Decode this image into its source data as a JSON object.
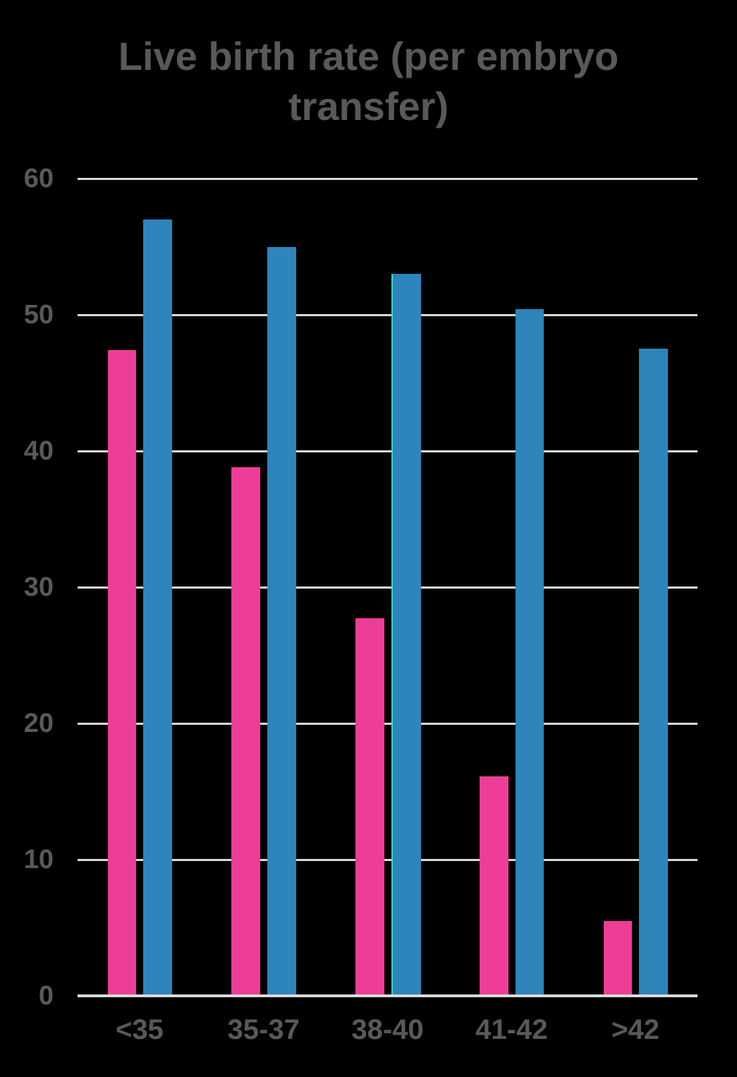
{
  "chart_data": {
    "type": "bar",
    "title": "Live birth rate (per embryo transfer)",
    "categories": [
      "<35",
      "35-37",
      "38-40",
      "41-42",
      ">42"
    ],
    "series": [
      {
        "name": "pink",
        "color": "#EE3D96",
        "values": [
          47.4,
          38.8,
          27.7,
          16.1,
          5.5
        ]
      },
      {
        "name": "blue",
        "color": "#2D85BB",
        "values": [
          57.0,
          55.0,
          53.0,
          50.4,
          47.5
        ]
      }
    ],
    "xlabel": "",
    "ylabel": "",
    "ylim": [
      0,
      60
    ],
    "yticks": [
      0,
      10,
      20,
      30,
      40,
      50,
      60
    ],
    "grid": true,
    "legend_position": "none",
    "bar_edge_highlight": {
      "series_index": 1,
      "category_index": 2,
      "side": "left",
      "color": "#35D9CE"
    }
  },
  "colors": {
    "background": "#000000",
    "text": "#595959",
    "gridline": "#D9D9D9",
    "axis_line": "#D9D9D9"
  }
}
